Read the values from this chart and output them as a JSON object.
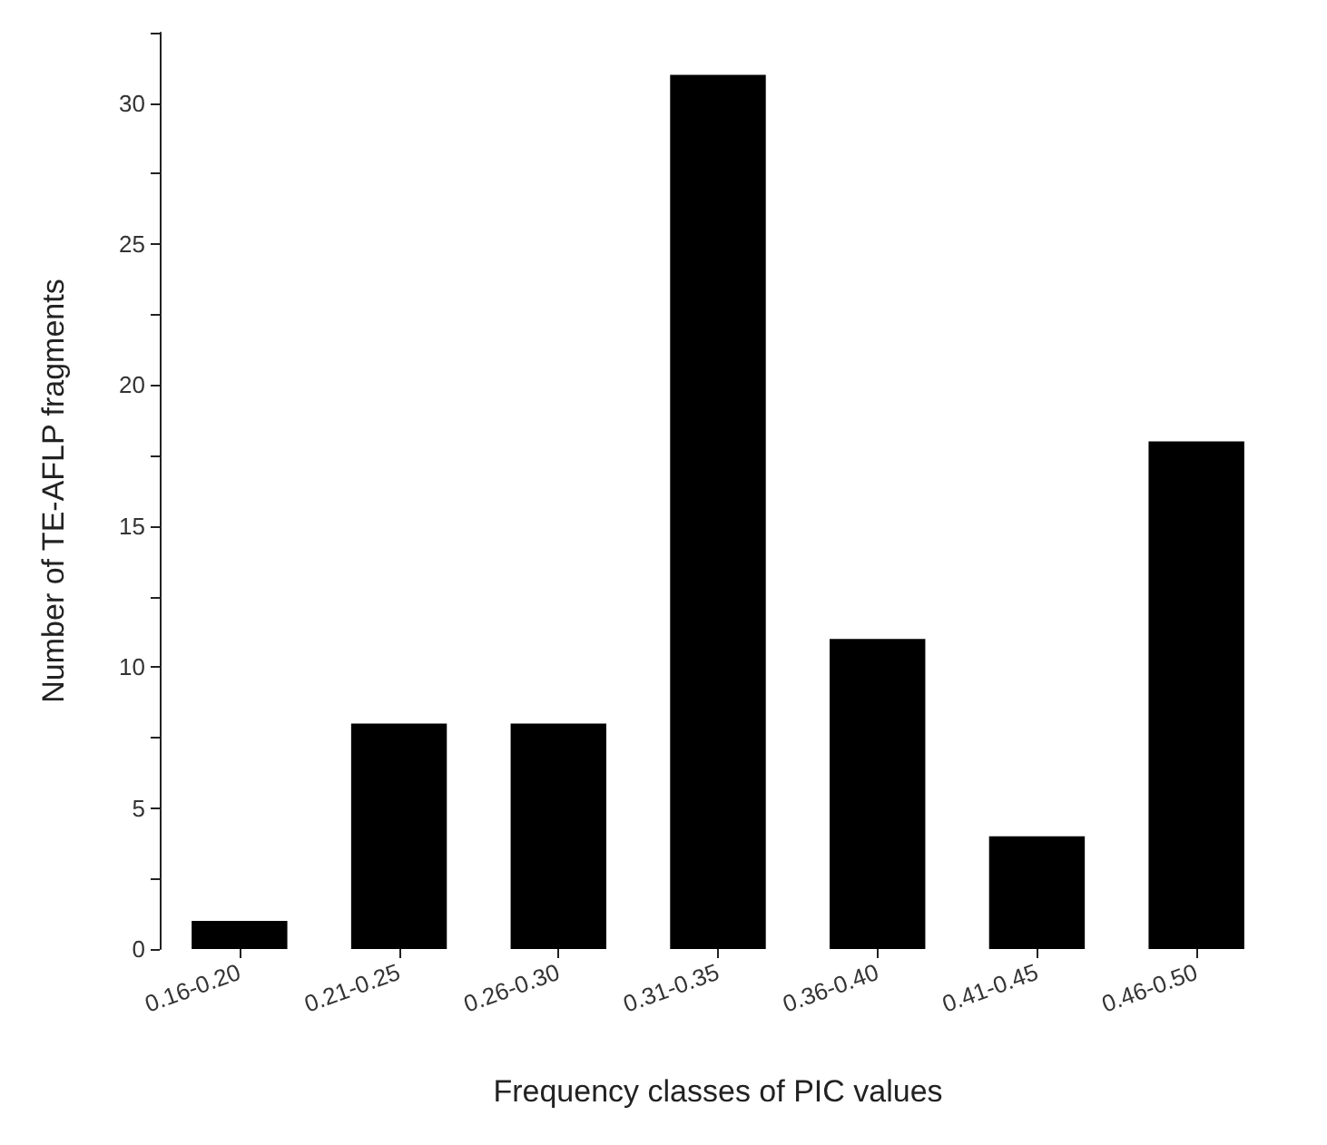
{
  "chart_data": {
    "type": "bar",
    "xlabel": "Frequency classes of PIC values",
    "ylabel": "Number of TE-AFLP fragments",
    "categories": [
      "0.16-0.20",
      "0.21-0.25",
      "0.26-0.30",
      "0.31-0.35",
      "0.36-0.40",
      "0.41-0.45",
      "0.46-0.50"
    ],
    "values": [
      1,
      8,
      8,
      31,
      11,
      4,
      18
    ],
    "color": "#000000",
    "ylim": [
      0,
      32.5
    ],
    "yticks": [
      0,
      {
        "value": 2.5,
        "label": null
      },
      5,
      {
        "value": 7.5,
        "label": null
      },
      10,
      {
        "value": 12.5,
        "label": null
      },
      15,
      {
        "value": 17.5,
        "label": null
      },
      20,
      {
        "value": 22.5,
        "label": null
      },
      25,
      {
        "value": 27.5,
        "label": null
      },
      30,
      {
        "value": 32.5,
        "label": null
      }
    ],
    "grid": false
  }
}
